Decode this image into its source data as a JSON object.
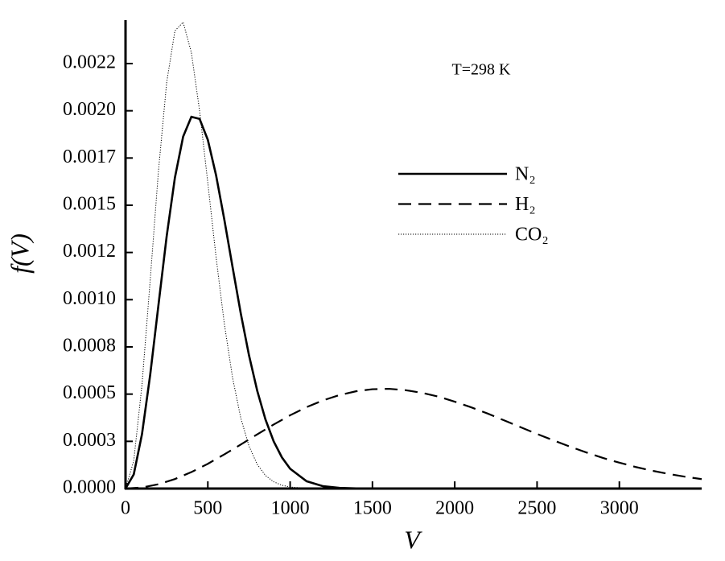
{
  "chart_data": {
    "type": "line",
    "annotation": "T=298 K",
    "xlabel": "V",
    "ylabel": "f(V)",
    "xlim": [
      0,
      3500
    ],
    "ylim": [
      0,
      0.00248
    ],
    "xticks": [
      0,
      500,
      1000,
      1500,
      2000,
      2500,
      3000
    ],
    "yticks": [
      {
        "value": 0,
        "label": "0.0000"
      },
      {
        "value": 0.00025,
        "label": "0.0003"
      },
      {
        "value": 0.0005,
        "label": "0.0005"
      },
      {
        "value": 0.00075,
        "label": "0.0008"
      },
      {
        "value": 0.001,
        "label": "0.0010"
      },
      {
        "value": 0.00125,
        "label": "0.0012"
      },
      {
        "value": 0.0015,
        "label": "0.0015"
      },
      {
        "value": 0.00175,
        "label": "0.0017"
      },
      {
        "value": 0.002,
        "label": "0.0020"
      },
      {
        "value": 0.00225,
        "label": "0.0022"
      }
    ],
    "series": [
      {
        "name": "N₂",
        "color": "#000000",
        "linestyle": "solid",
        "x": [
          0,
          50,
          100,
          150,
          200,
          250,
          300,
          350,
          400,
          450,
          500,
          550,
          600,
          650,
          700,
          750,
          800,
          850,
          900,
          950,
          1000,
          1100,
          1200,
          1300,
          1400,
          1500
        ],
        "values": [
          0,
          7.51e-05,
          0.000288,
          0.000603,
          0.000971,
          0.001336,
          0.001646,
          0.001863,
          0.001968,
          0.001957,
          0.001846,
          0.001659,
          0.001425,
          0.001174,
          0.000928,
          0.000706,
          0.000518,
          0.000366,
          0.00025,
          0.000165,
          0.000105,
          3.87e-05,
          1.25e-05,
          3.6e-06,
          9e-07,
          2e-07
        ]
      },
      {
        "name": "H₂",
        "color": "#000000",
        "linestyle": "dashed",
        "x": [
          0,
          100,
          200,
          300,
          400,
          500,
          600,
          700,
          800,
          900,
          1000,
          1100,
          1200,
          1300,
          1400,
          1500,
          1600,
          1700,
          1800,
          1900,
          2000,
          2100,
          2200,
          2300,
          2400,
          2500,
          2600,
          2700,
          2800,
          2900,
          3000,
          3100,
          3200,
          3300,
          3400,
          3500
        ],
        "values": [
          0,
          5.8e-06,
          2.29e-05,
          5.04e-05,
          8.71e-05,
          0.000131,
          0.000181,
          0.000233,
          0.000287,
          0.000339,
          0.000388,
          0.000431,
          0.000467,
          0.000495,
          0.000515,
          0.000526,
          0.000528,
          0.000521,
          0.000507,
          0.000487,
          0.00046,
          0.00043,
          0.000397,
          0.000361,
          0.000325,
          0.000289,
          0.000255,
          0.000222,
          0.000191,
          0.000162,
          0.000137,
          0.000114,
          9.44e-05,
          7.72e-05,
          6.25e-05,
          5e-05
        ]
      },
      {
        "name": "CO₂",
        "color": "#000000",
        "linestyle": "dotted",
        "x": [
          0,
          50,
          100,
          150,
          200,
          250,
          300,
          350,
          400,
          450,
          500,
          550,
          600,
          650,
          700,
          750,
          800,
          850,
          900,
          950,
          1000,
          1100
        ],
        "values": [
          0,
          0.000147,
          0.000549,
          0.001105,
          0.001681,
          0.00215,
          0.002423,
          0.002469,
          0.002308,
          0.002,
          0.001618,
          0.001226,
          0.000874,
          0.000588,
          0.000374,
          0.000225,
          0.000128,
          6.93e-05,
          3.57e-05,
          1.74e-05,
          8.1e-06,
          1.5e-06
        ]
      }
    ]
  }
}
